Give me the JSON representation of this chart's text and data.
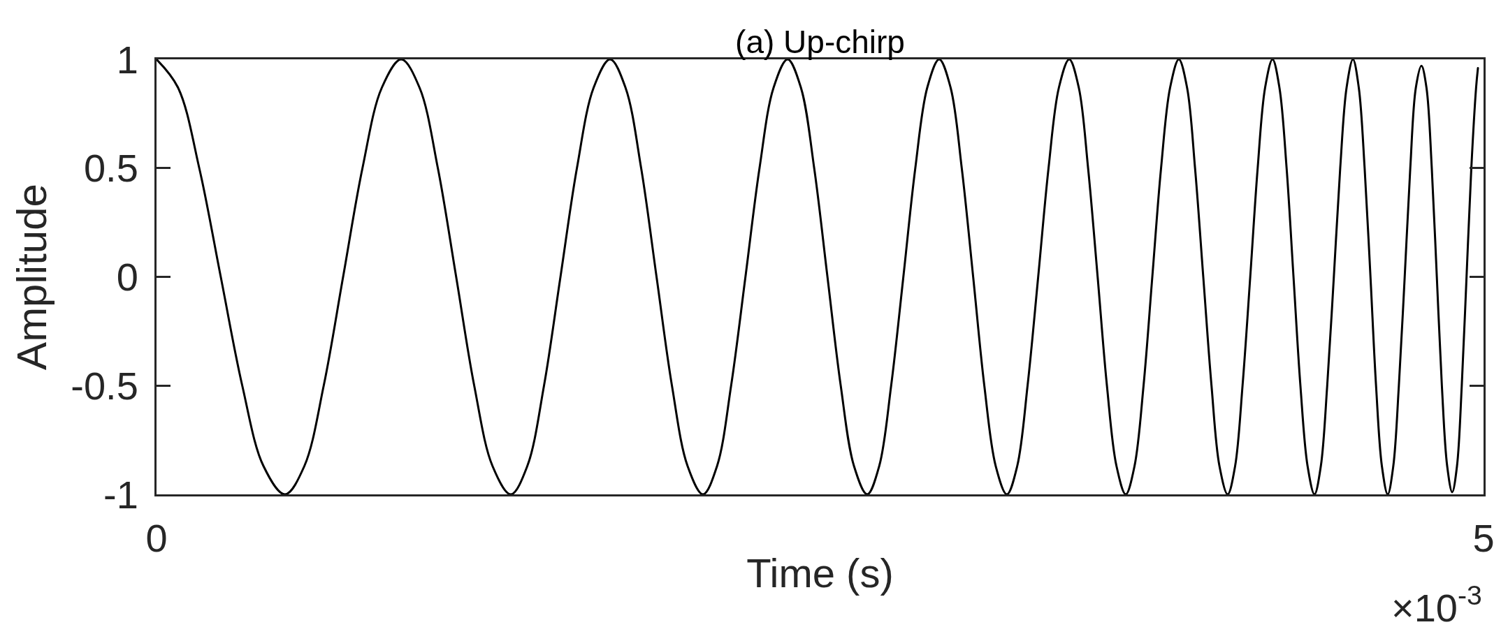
{
  "chart_data": {
    "type": "line",
    "title": "(a) Up-chirp",
    "xlabel": "Time (s)",
    "ylabel": "Amplitude",
    "annotations": [
      "×10$^{-3}$"
    ],
    "x": [
      0,
      0.081,
      0.161,
      0.242,
      0.323,
      0.403,
      0.484,
      0.557,
      0.63,
      0.703,
      0.776,
      0.849,
      0.922,
      0.991,
      1.06,
      1.129,
      1.197,
      1.266,
      1.335,
      1.397,
      1.46,
      1.522,
      1.584,
      1.647,
      1.709,
      1.767,
      1.826,
      1.884,
      1.942,
      2.001,
      2.059,
      2.112,
      2.165,
      2.219,
      2.272,
      2.325,
      2.378,
      2.428,
      2.478,
      2.528,
      2.578,
      2.628,
      2.678,
      2.723,
      2.768,
      2.814,
      2.859,
      2.904,
      2.949,
      2.992,
      3.034,
      3.077,
      3.119,
      3.162,
      3.204,
      3.243,
      3.282,
      3.322,
      3.361,
      3.4,
      3.439,
      3.475,
      3.51,
      3.546,
      3.581,
      3.617,
      3.652,
      3.685,
      3.719,
      3.752,
      3.785,
      3.819,
      3.852,
      3.883,
      3.913,
      3.944,
      3.975,
      4.005,
      4.036,
      4.064,
      4.092,
      4.121,
      4.149,
      4.177,
      4.205,
      4.231,
      4.258,
      4.284,
      4.31,
      4.337,
      4.363,
      4.387,
      4.411,
      4.436,
      4.46,
      4.484,
      4.508,
      4.53,
      4.552,
      4.574,
      4.595,
      4.617,
      4.639,
      4.66,
      4.681,
      4.703,
      4.724,
      4.745,
      4.766,
      4.785,
      4.805,
      4.824,
      4.843,
      4.863,
      4.882,
      4.9,
      4.918,
      4.936,
      4.954,
      4.972,
      4.979
    ],
    "series": [
      {
        "color": "#000000",
        "values": [
          1,
          0.87,
          0.5,
          0,
          -0.5,
          -0.87,
          -1,
          -0.87,
          -0.5,
          0,
          0.5,
          0.87,
          1,
          0.87,
          0.5,
          0,
          -0.5,
          -0.87,
          -1,
          -0.87,
          -0.5,
          0,
          0.5,
          0.87,
          1,
          0.87,
          0.5,
          0,
          -0.5,
          -0.87,
          -1,
          -0.87,
          -0.5,
          0,
          0.5,
          0.87,
          1,
          0.87,
          0.5,
          0,
          -0.5,
          -0.87,
          -1,
          -0.87,
          -0.5,
          0,
          0.5,
          0.87,
          1,
          0.87,
          0.5,
          0,
          -0.5,
          -0.87,
          -1,
          -0.87,
          -0.5,
          0,
          0.5,
          0.87,
          1,
          0.87,
          0.5,
          0,
          -0.5,
          -0.87,
          -1,
          -0.87,
          -0.5,
          0,
          0.5,
          0.87,
          1,
          0.87,
          0.5,
          0,
          -0.5,
          -0.87,
          -1,
          -0.87,
          -0.5,
          0,
          0.5,
          0.87,
          1,
          0.87,
          0.5,
          0,
          -0.5,
          -0.87,
          -1,
          -0.87,
          -0.5,
          0,
          0.5,
          0.87,
          1,
          0.87,
          0.5,
          0,
          -0.5,
          -0.87,
          -1,
          -0.87,
          -0.5,
          0,
          0.5,
          0.87,
          0.97,
          0.87,
          0.5,
          0,
          -0.5,
          -0.87,
          -0.99,
          -0.87,
          -0.5,
          0,
          0.5,
          0.87,
          0.96
        ]
      }
    ],
    "xlim": [
      0,
      5
    ],
    "ylim": [
      -1,
      1
    ],
    "xticks": [
      0,
      5
    ],
    "yticks": [
      -1,
      -0.5,
      0,
      0.5,
      1
    ],
    "grid": false,
    "line_style": "solid"
  }
}
